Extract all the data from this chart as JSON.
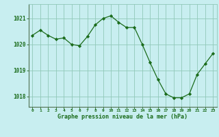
{
  "x": [
    0,
    1,
    2,
    3,
    4,
    5,
    6,
    7,
    8,
    9,
    10,
    11,
    12,
    13,
    14,
    15,
    16,
    17,
    18,
    19,
    20,
    21,
    22,
    23
  ],
  "y": [
    1020.35,
    1020.55,
    1020.35,
    1020.2,
    1020.25,
    1020.0,
    1019.95,
    1020.3,
    1020.75,
    1021.0,
    1021.1,
    1020.85,
    1020.65,
    1020.65,
    1020.0,
    1019.3,
    1018.65,
    1018.1,
    1017.95,
    1017.95,
    1018.1,
    1018.85,
    1019.25,
    1019.65
  ],
  "line_color": "#1a6b1a",
  "marker": "D",
  "marker_size": 2.2,
  "bg_color": "#c8eef0",
  "grid_color": "#90c8b8",
  "xlabel": "Graphe pression niveau de la mer (hPa)",
  "xlabel_color": "#1a6b1a",
  "tick_color": "#1a6b1a",
  "xlim": [
    -0.5,
    23.5
  ],
  "ylim": [
    1017.6,
    1021.55
  ],
  "yticks": [
    1018,
    1019,
    1020,
    1021
  ],
  "xticks": [
    0,
    1,
    2,
    3,
    4,
    5,
    6,
    7,
    8,
    9,
    10,
    11,
    12,
    13,
    14,
    15,
    16,
    17,
    18,
    19,
    20,
    21,
    22,
    23
  ]
}
